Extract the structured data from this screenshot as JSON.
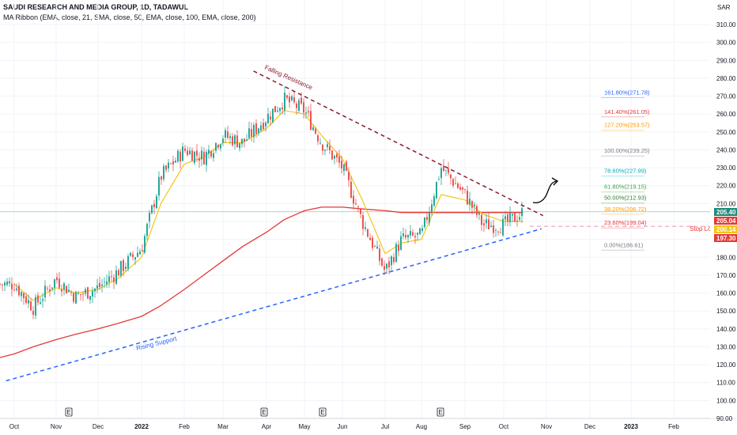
{
  "header": {
    "symbol_line": "SAUDI RESEARCH AND MEDIA GROUP, 1D, TADAWUL",
    "indicator_line": "MA Ribbon (EMA, close, 21, SMA, close, 50, EMA, close, 100, EMA, close, 200)"
  },
  "currency_label": "SAR",
  "y_ticks": [
    "310.00",
    "300.00",
    "290.00",
    "280.00",
    "270.00",
    "260.00",
    "250.00",
    "240.00",
    "230.00",
    "220.00",
    "210.00",
    "200.00",
    "190.00",
    "180.00",
    "170.00",
    "160.00",
    "150.00",
    "140.00",
    "130.00",
    "120.00",
    "110.00",
    "100.00",
    "90.00"
  ],
  "x_ticks": [
    "Oct",
    "Nov",
    "Dec",
    "2022",
    "Feb",
    "Mar",
    "Apr",
    "May",
    "Jun",
    "Jul",
    "Aug",
    "Sep",
    "Oct",
    "Nov",
    "Dec",
    "2023",
    "Feb"
  ],
  "earnings_marker": "E",
  "annotations": {
    "falling_resistance": "Falling Resistance",
    "rising_support": "Rising Support",
    "stop_loss": "Stop Loss"
  },
  "price_tags": [
    {
      "value": "205.40",
      "color": "#1e8a7a"
    },
    {
      "value": "205.04",
      "color": "#e53935"
    },
    {
      "value": "200.14",
      "color": "#f5c518"
    },
    {
      "value": "197.30",
      "color": "#e53935"
    }
  ],
  "fib_levels": [
    {
      "label": "161.80%(271.78)",
      "color": "#2962ff"
    },
    {
      "label": "141.40%(261.05)",
      "color": "#e53935"
    },
    {
      "label": "127.20%(253.57)",
      "color": "#ff9800"
    },
    {
      "label": "100.00%(239.25)",
      "color": "#787b86"
    },
    {
      "label": "78.60%(227.99)",
      "color": "#00acc1"
    },
    {
      "label": "61.80%(219.15)",
      "color": "#43a047"
    },
    {
      "label": "50.00%(212.93)",
      "color": "#2e7d32"
    },
    {
      "label": "38.20%(206.72)",
      "color": "#ff9800"
    },
    {
      "label": "23.60%(199.04)",
      "color": "#e53935"
    },
    {
      "label": "0.00%(186.61)",
      "color": "#787b86"
    }
  ],
  "chart_data": {
    "type": "candlestick",
    "title": "SAUDI RESEARCH AND MEDIA GROUP, 1D, TADAWUL",
    "y_unit": "SAR",
    "ylim": [
      90,
      315
    ],
    "x_range": [
      "2021-10",
      "2023-02"
    ],
    "grid": true,
    "close_series": {
      "name": "Close",
      "x": [
        "2021-10",
        "2021-10-15",
        "2021-11",
        "2021-11-15",
        "2021-12",
        "2021-12-15",
        "2022-01",
        "2022-01-15",
        "2022-02",
        "2022-02-15",
        "2022-03",
        "2022-03-15",
        "2022-04",
        "2022-04-15",
        "2022-05",
        "2022-05-15",
        "2022-06",
        "2022-06-15",
        "2022-07",
        "2022-07-15",
        "2022-08",
        "2022-08-15",
        "2022-09",
        "2022-09-15",
        "2022-10",
        "2022-10-15"
      ],
      "values": [
        165,
        152,
        168,
        158,
        163,
        172,
        185,
        225,
        240,
        236,
        248,
        244,
        258,
        268,
        262,
        244,
        230,
        200,
        172,
        190,
        192,
        230,
        215,
        198,
        198,
        205
      ]
    },
    "series": [
      {
        "name": "EMA 21",
        "color": "#f5c518",
        "values": [
          165,
          156,
          163,
          160,
          162,
          168,
          180,
          210,
          232,
          236,
          244,
          244,
          252,
          262,
          260,
          248,
          235,
          212,
          182,
          188,
          190,
          215,
          212,
          204,
          200,
          200
        ]
      },
      {
        "name": "EMA 200",
        "color": "#e53935",
        "values": [
          126,
          130,
          134,
          137,
          140,
          143,
          147,
          153,
          162,
          170,
          178,
          186,
          194,
          201,
          206,
          208,
          208,
          207,
          206,
          205,
          205,
          205,
          205,
          205,
          205,
          205
        ]
      }
    ],
    "trendlines": [
      {
        "name": "Falling Resistance",
        "from": [
          "2022-04-22",
          273
        ],
        "to": [
          "2022-10-25",
          205
        ]
      },
      {
        "name": "Rising Support",
        "from": [
          "2021-09-25",
          111
        ],
        "to": [
          "2022-10-25",
          195
        ]
      }
    ],
    "stop_loss": 197.3,
    "last_price": 205.4
  }
}
